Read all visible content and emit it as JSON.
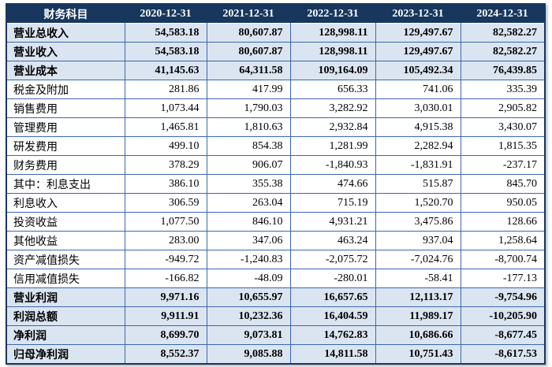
{
  "table": {
    "columns": [
      "财务科目",
      "2020-12-31",
      "2021-12-31",
      "2022-12-31",
      "2023-12-31",
      "2024-12-31"
    ],
    "rows": [
      {
        "label": "营业总收入",
        "values": [
          "54,583.18",
          "80,607.87",
          "128,998.11",
          "129,497.67",
          "82,582.27"
        ],
        "emphasis": true
      },
      {
        "label": "营业收入",
        "values": [
          "54,583.18",
          "80,607.87",
          "128,998.11",
          "129,497.67",
          "82,582.27"
        ],
        "emphasis": true
      },
      {
        "label": "营业成本",
        "values": [
          "41,145.63",
          "64,311.58",
          "109,164.09",
          "105,492.34",
          "76,439.85"
        ],
        "emphasis": true
      },
      {
        "label": "税金及附加",
        "values": [
          "281.86",
          "417.99",
          "656.33",
          "741.06",
          "335.39"
        ],
        "emphasis": false
      },
      {
        "label": "销售费用",
        "values": [
          "1,073.44",
          "1,790.03",
          "3,282.92",
          "3,030.01",
          "2,905.82"
        ],
        "emphasis": false
      },
      {
        "label": "管理费用",
        "values": [
          "1,465.81",
          "1,810.63",
          "2,932.84",
          "4,915.38",
          "3,430.07"
        ],
        "emphasis": false
      },
      {
        "label": "研发费用",
        "values": [
          "499.10",
          "854.38",
          "1,281.99",
          "2,282.94",
          "1,815.35"
        ],
        "emphasis": false
      },
      {
        "label": "财务费用",
        "values": [
          "378.29",
          "906.07",
          "-1,840.93",
          "-1,831.91",
          "-237.17"
        ],
        "emphasis": false
      },
      {
        "label": "其中：利息支出",
        "values": [
          "386.10",
          "355.38",
          "474.66",
          "515.87",
          "845.70"
        ],
        "emphasis": false
      },
      {
        "label": "利息收入",
        "values": [
          "306.59",
          "263.04",
          "715.19",
          "1,520.70",
          "950.05"
        ],
        "emphasis": false
      },
      {
        "label": "投资收益",
        "values": [
          "1,077.50",
          "846.10",
          "4,931.21",
          "3,475.86",
          "128.66"
        ],
        "emphasis": false
      },
      {
        "label": "其他收益",
        "values": [
          "283.00",
          "347.06",
          "463.24",
          "937.04",
          "1,258.64"
        ],
        "emphasis": false
      },
      {
        "label": "资产减值损失",
        "values": [
          "-949.72",
          "-1,240.83",
          "-2,075.72",
          "-7,024.76",
          "-8,700.74"
        ],
        "emphasis": false
      },
      {
        "label": "信用减值损失",
        "values": [
          "-166.82",
          "-48.09",
          "-280.01",
          "-58.41",
          "-177.13"
        ],
        "emphasis": false
      },
      {
        "label": "营业利润",
        "values": [
          "9,971.16",
          "10,655.97",
          "16,657.65",
          "12,113.17",
          "-9,754.96"
        ],
        "emphasis": true
      },
      {
        "label": "利润总额",
        "values": [
          "9,911.91",
          "10,232.36",
          "16,404.59",
          "11,989.17",
          "-10,205.90"
        ],
        "emphasis": true
      },
      {
        "label": "净利润",
        "values": [
          "8,699.70",
          "9,073.81",
          "14,762.83",
          "10,686.66",
          "-8,677.45"
        ],
        "emphasis": true
      },
      {
        "label": "归母净利润",
        "values": [
          "8,552.37",
          "9,085.88",
          "14,811.58",
          "10,751.43",
          "-8,617.53"
        ],
        "emphasis": true
      }
    ]
  },
  "colors": {
    "header_bg": "#17375E",
    "header_text": "#ffffff",
    "emphasis_row_bg": "#dbe5f1",
    "grid_border": "#3a67ad",
    "outer_border": "#17375E",
    "body_text": "#000000"
  }
}
